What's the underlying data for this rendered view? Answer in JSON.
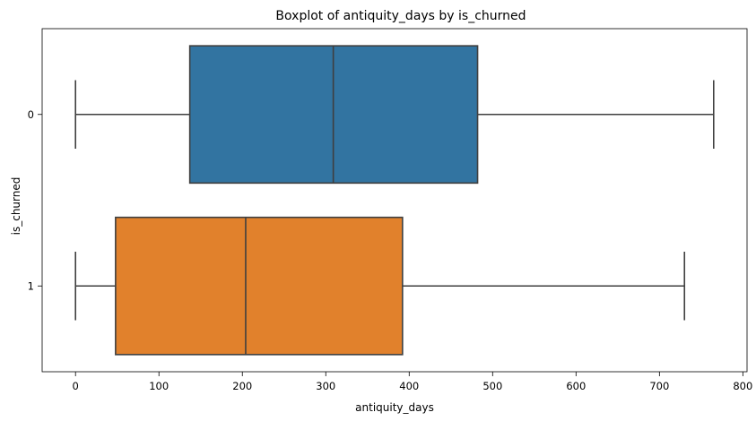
{
  "chart_data": {
    "type": "boxplot",
    "orientation": "horizontal",
    "title": "Boxplot of antiquity_days by is_churned",
    "xlabel": "antiquity_days",
    "ylabel": "is_churned",
    "xlim": [
      -40,
      805
    ],
    "xticks": [
      0,
      100,
      200,
      300,
      400,
      500,
      600,
      700,
      800
    ],
    "categories": [
      "0",
      "1"
    ],
    "series": [
      {
        "category": "0",
        "color": "#3274a1",
        "min": 0,
        "q1": 137,
        "median": 309,
        "q3": 482,
        "max": 765
      },
      {
        "category": "1",
        "color": "#e1812c",
        "min": 0,
        "q1": 48,
        "median": 204,
        "q3": 392,
        "max": 730
      }
    ]
  }
}
